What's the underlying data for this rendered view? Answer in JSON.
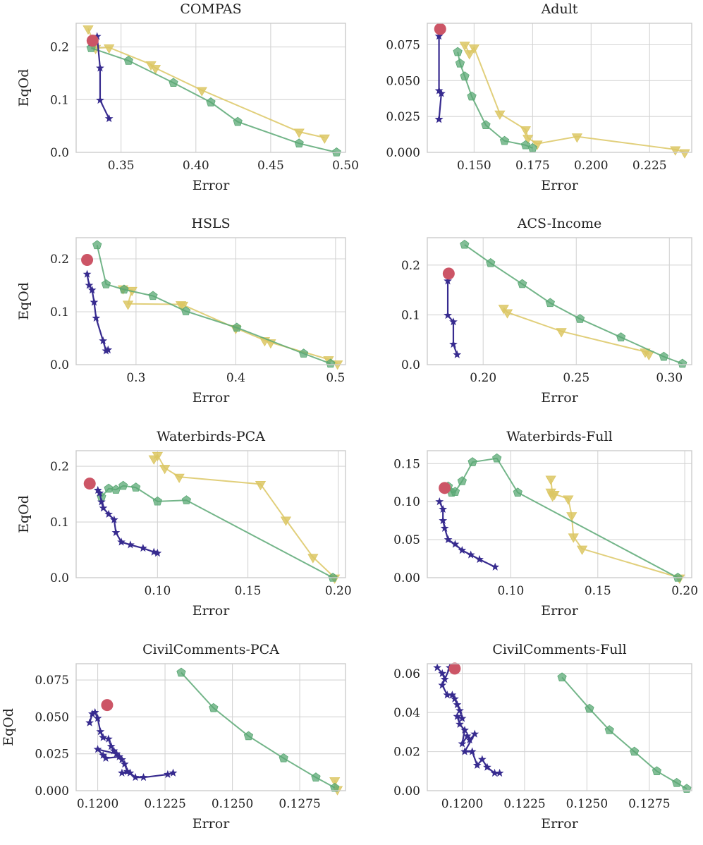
{
  "figure": {
    "legend": "none",
    "colors": {
      "fair": "#372b8f",
      "green": "#5aa874",
      "yellow": "#dcc764",
      "base": "#cc5566"
    },
    "series_styles": {
      "Method A (stars)": "star",
      "Method B (pentagons)": "pentagon",
      "Method C (triangles)": "triangle-down",
      "Baseline (circle)": "circle"
    }
  },
  "chart_data": [
    {
      "type": "line",
      "title": "COMPAS",
      "xlabel": "Error",
      "ylabel": "EqOd",
      "xlim": [
        0.32,
        0.5
      ],
      "ylim": [
        0,
        0.245
      ],
      "xticks": [
        0.35,
        0.4,
        0.45,
        0.5
      ],
      "xtick_labels": [
        "0.35",
        "0.40",
        "0.45",
        "0.50"
      ],
      "yticks": [
        0,
        0.1,
        0.2
      ],
      "ytick_labels": [
        "0.0",
        "0.1",
        "0.2"
      ],
      "series": [
        {
          "name": "yellow",
          "marker": "triangle",
          "x": [
            0.328,
            0.333,
            0.342,
            0.37,
            0.373,
            0.404,
            0.469,
            0.486
          ],
          "y": [
            0.235,
            0.198,
            0.199,
            0.167,
            0.16,
            0.118,
            0.039,
            0.028
          ]
        },
        {
          "name": "green",
          "marker": "pentagon",
          "x": [
            0.33,
            0.355,
            0.385,
            0.41,
            0.428,
            0.469,
            0.494
          ],
          "y": [
            0.198,
            0.174,
            0.132,
            0.095,
            0.058,
            0.017,
            0.0
          ]
        },
        {
          "name": "fair",
          "marker": "star",
          "x": [
            0.33,
            0.334,
            0.336,
            0.336,
            0.342
          ],
          "y": [
            0.208,
            0.22,
            0.16,
            0.099,
            0.064
          ]
        },
        {
          "name": "base",
          "marker": "circle",
          "x": [
            0.331
          ],
          "y": [
            0.212
          ]
        }
      ]
    },
    {
      "type": "line",
      "title": "Adult",
      "xlabel": "Error",
      "ylabel": "",
      "xlim": [
        0.13,
        0.243
      ],
      "ylim": [
        0,
        0.09
      ],
      "xticks": [
        0.15,
        0.175,
        0.2,
        0.225
      ],
      "xtick_labels": [
        "0.150",
        "0.175",
        "0.200",
        "0.225"
      ],
      "yticks": [
        0,
        0.025,
        0.05,
        0.075
      ],
      "ytick_labels": [
        "0.000",
        "0.025",
        "0.050",
        "0.075"
      ],
      "series": [
        {
          "name": "yellow",
          "marker": "triangle",
          "x": [
            0.146,
            0.148,
            0.15,
            0.161,
            0.172,
            0.173,
            0.177,
            0.194,
            0.236,
            0.24
          ],
          "y": [
            0.075,
            0.069,
            0.073,
            0.027,
            0.016,
            0.01,
            0.006,
            0.011,
            0.002,
            0.0
          ]
        },
        {
          "name": "green",
          "marker": "pentagon",
          "x": [
            0.143,
            0.144,
            0.146,
            0.149,
            0.155,
            0.163,
            0.172,
            0.175
          ],
          "y": [
            0.07,
            0.062,
            0.053,
            0.039,
            0.019,
            0.008,
            0.005,
            0.003
          ]
        },
        {
          "name": "fair",
          "marker": "star",
          "x": [
            0.135,
            0.135,
            0.136,
            0.135,
            0.135
          ],
          "y": [
            0.081,
            0.043,
            0.041,
            0.023,
            0.023
          ]
        },
        {
          "name": "base",
          "marker": "circle",
          "x": [
            0.1355
          ],
          "y": [
            0.086
          ]
        }
      ]
    },
    {
      "type": "line",
      "title": "HSLS",
      "xlabel": "Error",
      "ylabel": "EqOd",
      "xlim": [
        0.24,
        0.51
      ],
      "ylim": [
        0,
        0.24
      ],
      "xticks": [
        0.3,
        0.4,
        0.5
      ],
      "xtick_labels": [
        "0.3",
        "0.4",
        "0.5"
      ],
      "yticks": [
        0,
        0.1,
        0.2
      ],
      "ytick_labels": [
        "0.0",
        "0.1",
        "0.2"
      ],
      "series": [
        {
          "name": "yellow",
          "marker": "triangle",
          "x": [
            0.287,
            0.296,
            0.292,
            0.345,
            0.347,
            0.4,
            0.429,
            0.435,
            0.493,
            0.502
          ],
          "y": [
            0.144,
            0.141,
            0.115,
            0.114,
            0.113,
            0.069,
            0.046,
            0.042,
            0.01,
            0.002
          ]
        },
        {
          "name": "green",
          "marker": "pentagon",
          "x": [
            0.261,
            0.27,
            0.288,
            0.317,
            0.35,
            0.401,
            0.468,
            0.495
          ],
          "y": [
            0.226,
            0.152,
            0.142,
            0.13,
            0.101,
            0.07,
            0.021,
            0.002
          ]
        },
        {
          "name": "fair",
          "marker": "star",
          "x": [
            0.251,
            0.253,
            0.256,
            0.258,
            0.26,
            0.267,
            0.27,
            0.272
          ],
          "y": [
            0.171,
            0.15,
            0.141,
            0.118,
            0.088,
            0.045,
            0.026,
            0.028
          ]
        },
        {
          "name": "base",
          "marker": "circle",
          "x": [
            0.251
          ],
          "y": [
            0.198
          ]
        }
      ]
    },
    {
      "type": "line",
      "title": "ACS-Income",
      "xlabel": "Error",
      "ylabel": "",
      "xlim": [
        0.17,
        0.312
      ],
      "ylim": [
        0,
        0.255
      ],
      "xticks": [
        0.2,
        0.25,
        0.3
      ],
      "xtick_labels": [
        "0.20",
        "0.25",
        "0.30"
      ],
      "yticks": [
        0,
        0.1,
        0.2
      ],
      "ytick_labels": [
        "0.0",
        "0.1",
        "0.2"
      ],
      "series": [
        {
          "name": "yellow",
          "marker": "triangle",
          "x": [
            0.211,
            0.213,
            0.242,
            0.287,
            0.289
          ],
          "y": [
            0.114,
            0.105,
            0.067,
            0.026,
            0.021
          ]
        },
        {
          "name": "green",
          "marker": "pentagon",
          "x": [
            0.19,
            0.204,
            0.221,
            0.236,
            0.252,
            0.274,
            0.297,
            0.307
          ],
          "y": [
            0.241,
            0.204,
            0.162,
            0.124,
            0.092,
            0.055,
            0.016,
            0.002
          ]
        },
        {
          "name": "fair",
          "marker": "star",
          "x": [
            0.181,
            0.181,
            0.184,
            0.184,
            0.186
          ],
          "y": [
            0.168,
            0.099,
            0.086,
            0.041,
            0.02
          ]
        },
        {
          "name": "base",
          "marker": "circle",
          "x": [
            0.1815
          ],
          "y": [
            0.183
          ]
        }
      ]
    },
    {
      "type": "line",
      "title": "Waterbirds-PCA",
      "xlabel": "Error",
      "ylabel": "EqOd",
      "xlim": [
        0.055,
        0.204
      ],
      "ylim": [
        0,
        0.228
      ],
      "xticks": [
        0.1,
        0.15,
        0.2
      ],
      "xtick_labels": [
        "0.10",
        "0.15",
        "0.20"
      ],
      "yticks": [
        0,
        0.1,
        0.2
      ],
      "ytick_labels": [
        "0.0",
        "0.1",
        "0.2"
      ],
      "series": [
        {
          "name": "yellow",
          "marker": "triangle",
          "x": [
            0.098,
            0.1,
            0.104,
            0.112,
            0.157,
            0.171,
            0.186,
            0.198
          ],
          "y": [
            0.214,
            0.22,
            0.197,
            0.181,
            0.168,
            0.104,
            0.037,
            0.0
          ]
        },
        {
          "name": "green",
          "marker": "pentagon",
          "x": [
            0.069,
            0.073,
            0.077,
            0.081,
            0.088,
            0.1,
            0.116,
            0.197
          ],
          "y": [
            0.145,
            0.16,
            0.158,
            0.165,
            0.162,
            0.137,
            0.139,
            0.0
          ]
        },
        {
          "name": "fair",
          "marker": "star",
          "x": [
            0.067,
            0.068,
            0.069,
            0.07,
            0.073,
            0.076,
            0.077,
            0.08,
            0.085,
            0.092,
            0.098,
            0.1
          ],
          "y": [
            0.157,
            0.152,
            0.136,
            0.125,
            0.114,
            0.104,
            0.081,
            0.064,
            0.059,
            0.053,
            0.046,
            0.044
          ]
        },
        {
          "name": "base",
          "marker": "circle",
          "x": [
            0.0625
          ],
          "y": [
            0.169
          ]
        }
      ]
    },
    {
      "type": "line",
      "title": "Waterbirds-Full",
      "xlabel": "Error",
      "ylabel": "",
      "xlim": [
        0.052,
        0.204
      ],
      "ylim": [
        0,
        0.167
      ],
      "xticks": [
        0.1,
        0.15,
        0.2
      ],
      "xtick_labels": [
        "0.10",
        "0.15",
        "0.20"
      ],
      "yticks": [
        0,
        0.05,
        0.1,
        0.15
      ],
      "ytick_labels": [
        "0.00",
        "0.05",
        "0.10",
        "0.15"
      ],
      "series": [
        {
          "name": "yellow",
          "marker": "triangle",
          "x": [
            0.123,
            0.124,
            0.123,
            0.125,
            0.133,
            0.135,
            0.136,
            0.141,
            0.197
          ],
          "y": [
            0.13,
            0.108,
            0.113,
            0.11,
            0.104,
            0.082,
            0.054,
            0.038,
            0.0
          ]
        },
        {
          "name": "green",
          "marker": "pentagon",
          "x": [
            0.064,
            0.066,
            0.068,
            0.072,
            0.078,
            0.092,
            0.104,
            0.196
          ],
          "y": [
            0.12,
            0.112,
            0.113,
            0.127,
            0.152,
            0.157,
            0.112,
            0.0
          ]
        },
        {
          "name": "fair",
          "marker": "star",
          "x": [
            0.059,
            0.061,
            0.061,
            0.062,
            0.064,
            0.068,
            0.072,
            0.077,
            0.082,
            0.091
          ],
          "y": [
            0.1,
            0.09,
            0.075,
            0.065,
            0.05,
            0.044,
            0.036,
            0.03,
            0.024,
            0.014
          ]
        },
        {
          "name": "base",
          "marker": "circle",
          "x": [
            0.062
          ],
          "y": [
            0.118
          ]
        }
      ]
    },
    {
      "type": "line",
      "title": "CivilComments-PCA",
      "xlabel": "Error",
      "ylabel": "EqOd",
      "xlim": [
        0.1192,
        0.1292
      ],
      "ylim": [
        0,
        0.086
      ],
      "xticks": [
        0.12,
        0.1225,
        0.125,
        0.1275
      ],
      "xtick_labels": [
        "0.1200",
        "0.1225",
        "0.1250",
        "0.1275"
      ],
      "yticks": [
        0,
        0.025,
        0.05,
        0.075
      ],
      "ytick_labels": [
        "0.000",
        "0.025",
        "0.050",
        "0.075"
      ],
      "series": [
        {
          "name": "yellow",
          "marker": "triangle",
          "x": [
            0.1288,
            0.1289
          ],
          "y": [
            0.007,
            0.001
          ]
        },
        {
          "name": "green",
          "marker": "pentagon",
          "x": [
            0.1231,
            0.1243,
            0.1256,
            0.1269,
            0.1281,
            0.1288
          ],
          "y": [
            0.08,
            0.056,
            0.037,
            0.022,
            0.009,
            0.002
          ]
        },
        {
          "name": "fair",
          "marker": "star",
          "x": [
            0.1197,
            0.1198,
            0.1199,
            0.12,
            0.1201,
            0.1202,
            0.1204,
            0.1205,
            0.1206,
            0.1207,
            0.12,
            0.1202,
            0.1203,
            0.1208,
            0.1209,
            0.121,
            0.1211,
            0.1209,
            0.1212,
            0.1214,
            0.1217,
            0.1226,
            0.1228
          ],
          "y": [
            0.046,
            0.052,
            0.053,
            0.049,
            0.04,
            0.036,
            0.035,
            0.03,
            0.027,
            0.025,
            0.028,
            0.024,
            0.022,
            0.023,
            0.021,
            0.018,
            0.013,
            0.012,
            0.012,
            0.009,
            0.009,
            0.011,
            0.012
          ]
        },
        {
          "name": "base",
          "marker": "circle",
          "x": [
            0.12035
          ],
          "y": [
            0.058
          ]
        }
      ]
    },
    {
      "type": "line",
      "title": "CivilComments-Full",
      "xlabel": "Error",
      "ylabel": "",
      "xlim": [
        0.1186,
        0.1292
      ],
      "ylim": [
        0,
        0.065
      ],
      "xticks": [
        0.12,
        0.1225,
        0.125,
        0.1275
      ],
      "xtick_labels": [
        "0.1200",
        "0.1225",
        "0.1250",
        "0.1275"
      ],
      "yticks": [
        0,
        0.02,
        0.04,
        0.06
      ],
      "ytick_labels": [
        "0.00",
        "0.02",
        "0.04",
        "0.06"
      ],
      "series": [
        {
          "name": "green",
          "marker": "pentagon",
          "x": [
            0.124,
            0.1251,
            0.1259,
            0.1269,
            0.1278,
            0.1286,
            0.129
          ],
          "y": [
            0.058,
            0.042,
            0.031,
            0.02,
            0.01,
            0.004,
            0.001
          ]
        },
        {
          "name": "fair",
          "marker": "star",
          "x": [
            0.119,
            0.1192,
            0.1193,
            0.1195,
            0.1192,
            0.1194,
            0.1196,
            0.1197,
            0.1198,
            0.1199,
            0.12,
            0.1198,
            0.1199,
            0.1201,
            0.12,
            0.1202,
            0.1203,
            0.1205,
            0.1201,
            0.1204,
            0.1206,
            0.1208,
            0.121,
            0.1213,
            0.1215
          ],
          "y": [
            0.063,
            0.06,
            0.057,
            0.063,
            0.054,
            0.049,
            0.049,
            0.047,
            0.044,
            0.041,
            0.037,
            0.038,
            0.034,
            0.031,
            0.024,
            0.028,
            0.026,
            0.029,
            0.02,
            0.02,
            0.013,
            0.016,
            0.012,
            0.009,
            0.009
          ]
        },
        {
          "name": "base",
          "marker": "circle",
          "x": [
            0.1197
          ],
          "y": [
            0.0625
          ]
        }
      ]
    }
  ]
}
